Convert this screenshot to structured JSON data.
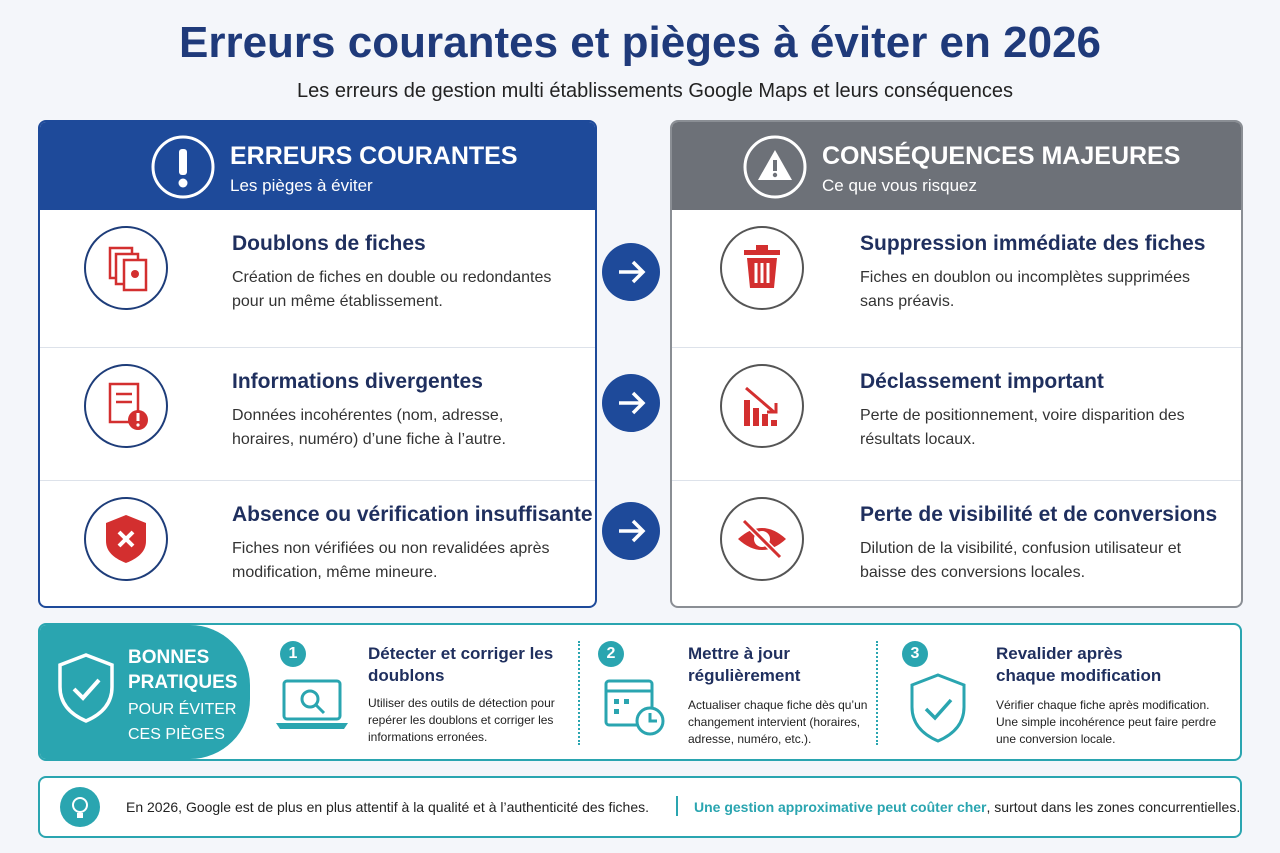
{
  "header": {
    "title": "Erreurs courantes et pièges à éviter en 2026",
    "subtitle": "Les erreurs de gestion multi établissements Google Maps et leurs conséquences"
  },
  "errors": {
    "title": "ERREURS COURANTES",
    "subtitle": "Les pièges à éviter",
    "items": [
      {
        "title": "Doublons de fiches",
        "text": "Création de fiches en double ou redondantes pour un même établissement."
      },
      {
        "title": "Informations divergentes",
        "text": "Données incohérentes (nom, adresse, horaires, numéro) d’une fiche à l’autre."
      },
      {
        "title": "Absence ou vérification insuffisante",
        "text": "Fiches non vérifiées ou non revalidées après modification, même mineure."
      }
    ]
  },
  "consequences": {
    "title": "CONSÉQUENCES MAJEURES",
    "subtitle": "Ce que vous risquez",
    "items": [
      {
        "title": "Suppression immédiate des fiches",
        "text": "Fiches en doublon ou incomplètes supprimées sans préavis."
      },
      {
        "title": "Déclassement important",
        "text": "Perte de positionnement, voire disparition des résultats locaux."
      },
      {
        "title": "Perte de visibilité et de conversions",
        "text": "Dilution de la visibilité, confusion utilisateur et baisse des conversions locales."
      }
    ]
  },
  "best_practices": {
    "title": "BONNES PRATIQUES",
    "subtitle": "POUR ÉVITER CES PIÈGES",
    "steps": [
      {
        "number": "1",
        "title": "Détecter et corriger les doublons",
        "text": "Utiliser des outils de détection pour repérer les doublons et corriger les informations erronées."
      },
      {
        "number": "2",
        "title": "Mettre à jour régulièrement",
        "text": "Actualiser chaque fiche dès qu’un changement intervient (horaires, adresse, numéro, etc.)."
      },
      {
        "number": "3",
        "title": "Revalider après chaque modification",
        "text": "Vérifier chaque fiche après modification. Une simple incohérence peut faire perdre une conversion locale."
      }
    ]
  },
  "footer": {
    "text": "En 2026, Google est de plus en plus attentif à la qualité et à l’authenticité des fiches.",
    "highlight": "Une gestion approximative peut coûter cher",
    "text_end": ", surtout dans les zones concurrentielles."
  }
}
